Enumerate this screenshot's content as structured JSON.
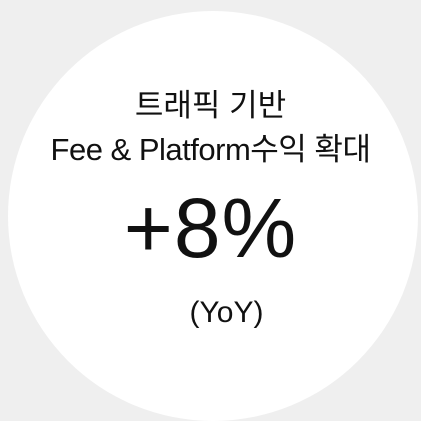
{
  "title_line1": "트래픽 기반",
  "title_line2": "Fee & Platform수익 확대",
  "figure": "+8%",
  "note": "(YoY)"
}
